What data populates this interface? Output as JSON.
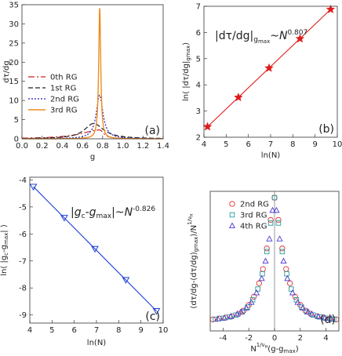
{
  "chart_data": [
    {
      "panel": "a",
      "type": "line",
      "panel_label": "(a)",
      "xlabel": "g",
      "ylabel": "dτ/dg",
      "xlim": [
        0,
        1.4
      ],
      "ylim": [
        0,
        35
      ],
      "xticks": [
        "0.0",
        "0.2",
        "0.4",
        "0.6",
        "0.8",
        "1.0",
        "1.2",
        "1.4"
      ],
      "yticks": [
        "0",
        "5",
        "10",
        "15",
        "20",
        "25",
        "30",
        "35"
      ],
      "grid": false,
      "legend_position": "left-middle",
      "series": [
        {
          "name": "0th RG",
          "color": "#cc2222",
          "dash": "8,3,2,3",
          "peak_x": 0.77,
          "peak_y": 2.3,
          "sigma_left": 0.22,
          "sigma_right": 0.05
        },
        {
          "name": "1st RG",
          "color": "#222222",
          "dash": "6,3",
          "peak_x": 0.71,
          "peak_y": 4.0,
          "sigma_left": 0.11,
          "sigma_right": 0.12
        },
        {
          "name": "2nd RG",
          "color": "#1f1fbf",
          "dash": "2,2",
          "peak_x": 0.77,
          "peak_y": 11.4,
          "sigma_left": 0.04,
          "sigma_right": 0.04
        },
        {
          "name": "3rd RG",
          "color": "#f08c1e",
          "dash": "",
          "peak_x": 0.771,
          "peak_y": 34.3,
          "sigma_left": 0.012,
          "sigma_right": 0.012
        }
      ]
    },
    {
      "panel": "b",
      "type": "scatter",
      "panel_label": "(b)",
      "xlabel": "ln(N)",
      "ylabel": "ln( |dτ/dg|gmax)",
      "annotation": "|dτ/dg|gmax~N0.807",
      "xlim": [
        4,
        10
      ],
      "ylim": [
        2,
        7
      ],
      "xticks": [
        "4",
        "5",
        "6",
        "7",
        "8",
        "9",
        "10"
      ],
      "yticks": [
        "2",
        "3",
        "4",
        "5",
        "6",
        "7"
      ],
      "color": "#e01b1b",
      "marker": "star",
      "x": [
        4.16,
        5.55,
        6.93,
        8.32,
        9.7
      ],
      "y": [
        2.4,
        3.52,
        4.64,
        5.76,
        6.88
      ],
      "fit": [
        [
          4.16,
          2.4
        ],
        [
          9.7,
          6.88
        ]
      ]
    },
    {
      "panel": "c",
      "type": "scatter",
      "panel_label": "(c)",
      "xlabel": "ln(N)",
      "ylabel": "ln( |gc-gmax| )",
      "annotation": "|gc-gmax|~N-0.826",
      "xlim": [
        4,
        10
      ],
      "ylim": [
        -9.3,
        -3.9
      ],
      "xticks": [
        "4",
        "5",
        "6",
        "7",
        "8",
        "9",
        "10"
      ],
      "yticks": [
        "-4",
        "-5",
        "-6",
        "-7",
        "-8",
        "-9"
      ],
      "color": "#1f3fd6",
      "marker": "triangle-down",
      "x": [
        4.16,
        5.55,
        6.93,
        8.32,
        9.7
      ],
      "y": [
        -4.25,
        -5.4,
        -6.55,
        -7.7,
        -8.85
      ],
      "fit": [
        [
          4.16,
          -4.25
        ],
        [
          9.7,
          -8.85
        ]
      ]
    },
    {
      "panel": "d",
      "type": "scatter",
      "panel_label": "(d)",
      "xlabel": "N1/νH(g-gmax)",
      "ylabel": "(dτ/dg-(dτ/dg)gmax)/N1/νH",
      "xlim": [
        -5,
        5
      ],
      "ylim": [
        -0.42,
        0.02
      ],
      "xticks": [
        "-4",
        "-2",
        "0",
        "2",
        "4"
      ],
      "yticks": [],
      "series": [
        {
          "name": "2nd RG",
          "color": "#e03030",
          "marker": "circle",
          "x": [
            -4.8,
            -4.3,
            -3.8,
            -3.3,
            -2.8,
            -2.4,
            -2.0,
            -1.6,
            -1.2,
            -0.9,
            -0.6,
            -0.3,
            0.0,
            0.3,
            0.6,
            0.9,
            1.2,
            1.6,
            2.0,
            2.4,
            2.8,
            3.3,
            3.8,
            4.3,
            4.8
          ],
          "y": [
            -0.384,
            -0.381,
            -0.378,
            -0.374,
            -0.366,
            -0.356,
            -0.338,
            -0.312,
            -0.27,
            -0.225,
            -0.16,
            -0.07,
            0.0,
            -0.07,
            -0.16,
            -0.225,
            -0.27,
            -0.312,
            -0.338,
            -0.356,
            -0.366,
            -0.374,
            -0.378,
            -0.381,
            -0.384
          ]
        },
        {
          "name": "3rd RG",
          "color": "#2a9a9a",
          "marker": "square",
          "x": [
            -4.6,
            -4.0,
            -3.5,
            -3.0,
            -2.5,
            -2.1,
            -1.7,
            -1.3,
            -0.95,
            -0.6,
            -0.3,
            0.0,
            0.3,
            0.6,
            0.95,
            1.3,
            1.7,
            2.1,
            2.5,
            3.0,
            3.5,
            4.0,
            4.6
          ],
          "y": [
            -0.383,
            -0.38,
            -0.376,
            -0.37,
            -0.36,
            -0.345,
            -0.322,
            -0.288,
            -0.24,
            -0.17,
            -0.08,
            0.0,
            -0.08,
            -0.17,
            -0.24,
            -0.288,
            -0.322,
            -0.345,
            -0.36,
            -0.37,
            -0.376,
            -0.38,
            -0.383
          ]
        },
        {
          "name": "4th RG",
          "color": "#4a3ccf",
          "marker": "triangle-up",
          "x": [
            -4.4,
            -3.9,
            -3.4,
            -2.9,
            -2.6,
            -2.2,
            -1.8,
            -1.4,
            -1.0,
            -0.7,
            -0.4,
            -0.15,
            0.15,
            0.4,
            0.7,
            1.0,
            1.4,
            1.8,
            2.2,
            2.6,
            2.9,
            3.4,
            3.9,
            4.4
          ],
          "y": [
            -0.382,
            -0.379,
            -0.374,
            -0.367,
            -0.36,
            -0.348,
            -0.33,
            -0.3,
            -0.255,
            -0.2,
            -0.13,
            -0.04,
            -0.04,
            -0.13,
            -0.2,
            -0.255,
            -0.3,
            -0.33,
            -0.348,
            -0.36,
            -0.367,
            -0.374,
            -0.379,
            -0.382
          ]
        }
      ]
    }
  ]
}
